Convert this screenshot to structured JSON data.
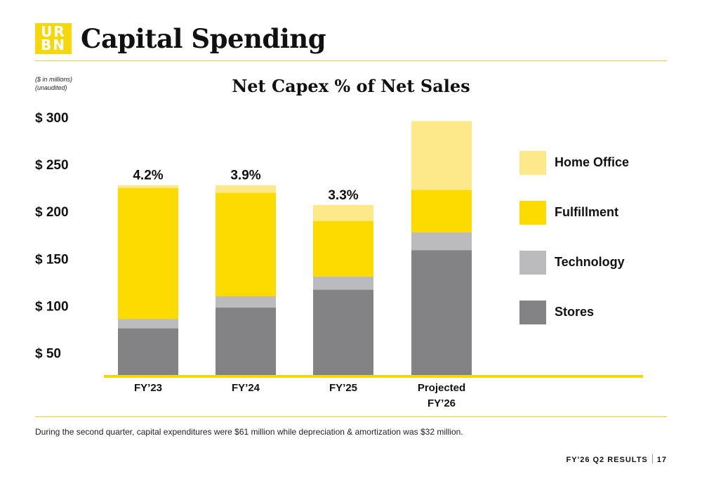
{
  "logo": {
    "line1": "UR",
    "line2": "BN"
  },
  "page_title": "Capital Spending",
  "note": {
    "line1": "($ in millions)",
    "line2": "(unaudited)"
  },
  "footnote": "During the second quarter, capital expenditures were $61 million while depreciation & amortization was $32 million.",
  "footer": {
    "text": "FY'26 Q2 RESULTS",
    "page": "17"
  },
  "colors": {
    "accent": "#f5d80c",
    "home_office": "#fde98a",
    "fulfillment": "#fdda00",
    "technology": "#bbbbbd",
    "stores": "#838385"
  },
  "chart_data": {
    "type": "bar",
    "stacked": true,
    "title": "Net Capex % of Net Sales",
    "ylim": [
      25,
      300
    ],
    "yticks": [
      {
        "value": 50,
        "label": "$    50"
      },
      {
        "value": 100,
        "label": "$  100"
      },
      {
        "value": 150,
        "label": "$  150"
      },
      {
        "value": 200,
        "label": "$  200"
      },
      {
        "value": 250,
        "label": "$  250"
      },
      {
        "value": 300,
        "label": "$  300"
      }
    ],
    "categories": [
      "FY’23",
      "FY’24",
      "FY’25",
      "Projected FY’26"
    ],
    "category_lines": [
      [
        "FY’23"
      ],
      [
        "FY’24"
      ],
      [
        "FY’25"
      ],
      [
        "Projected",
        "FY’26"
      ]
    ],
    "bar_labels": [
      "4.2%",
      "3.9%",
      "3.3%",
      ""
    ],
    "series": [
      {
        "name": "Stores",
        "color": "#838385",
        "values": [
          51,
          73,
          92,
          134
        ]
      },
      {
        "name": "Technology",
        "color": "#bbbbbd",
        "values": [
          10,
          12,
          14,
          19
        ]
      },
      {
        "name": "Fulfillment",
        "color": "#fdda00",
        "values": [
          139,
          110,
          59,
          45
        ]
      },
      {
        "name": "Home Office",
        "color": "#fde98a",
        "values": [
          3,
          8,
          17,
          73
        ]
      }
    ],
    "legend_order": [
      "Home Office",
      "Fulfillment",
      "Technology",
      "Stores"
    ],
    "legend_position": "right",
    "grid": false
  }
}
